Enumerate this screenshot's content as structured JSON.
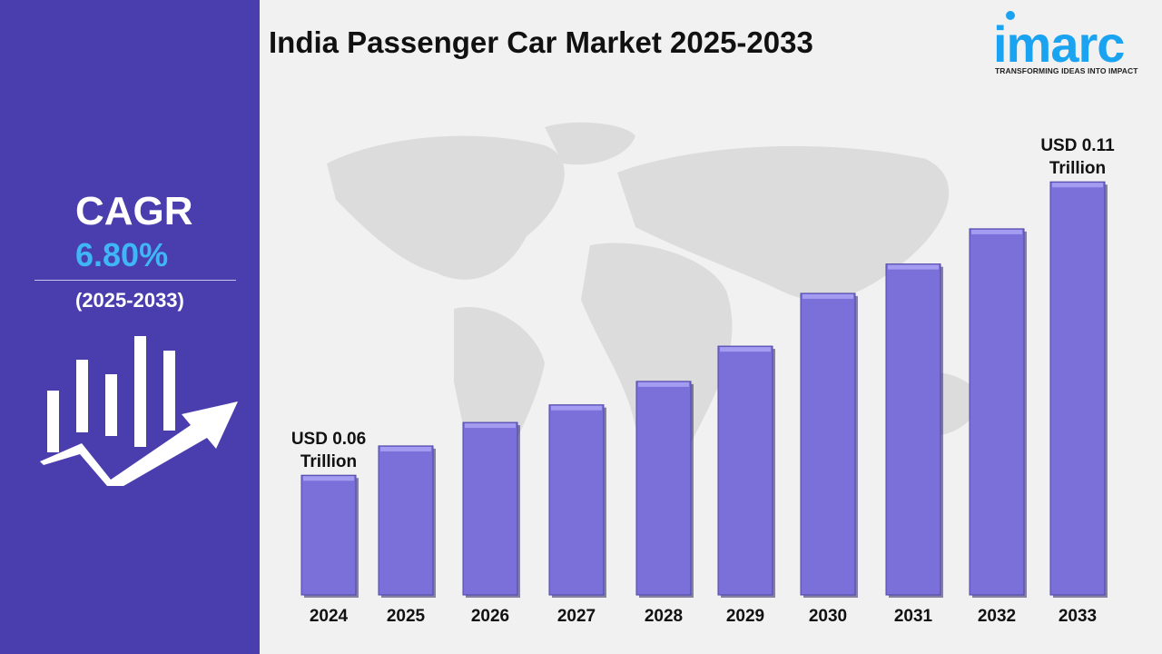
{
  "title": "India Passenger Car Market 2025-2033",
  "logo": {
    "text": "imarc",
    "tagline": "TRANSFORMING IDEAS INTO IMPACT",
    "color": "#1aa3f0"
  },
  "sidebar": {
    "cagr_label": "CAGR",
    "cagr_value": "6.80%",
    "period": "(2025-2033)",
    "background": "#4a3dae",
    "value_color": "#3fb6f5",
    "icon": "growth-bar-chart-arrow-icon"
  },
  "chart_data": {
    "type": "bar",
    "title": "India Passenger Car Market 2025-2033",
    "categories": [
      "2024",
      "2025",
      "2026",
      "2027",
      "2028",
      "2029",
      "2030",
      "2031",
      "2032",
      "2033"
    ],
    "values": [
      0.06,
      0.065,
      0.069,
      0.072,
      0.076,
      0.082,
      0.091,
      0.096,
      0.102,
      0.11
    ],
    "unit": "USD Trillion",
    "annotations": [
      {
        "category": "2024",
        "lines": [
          "USD 0.06",
          "Trillion"
        ]
      },
      {
        "category": "2033",
        "lines": [
          "USD 0.11",
          "Trillion"
        ]
      }
    ],
    "bar_color": "#7b70da",
    "grid": false,
    "legend": "none"
  }
}
